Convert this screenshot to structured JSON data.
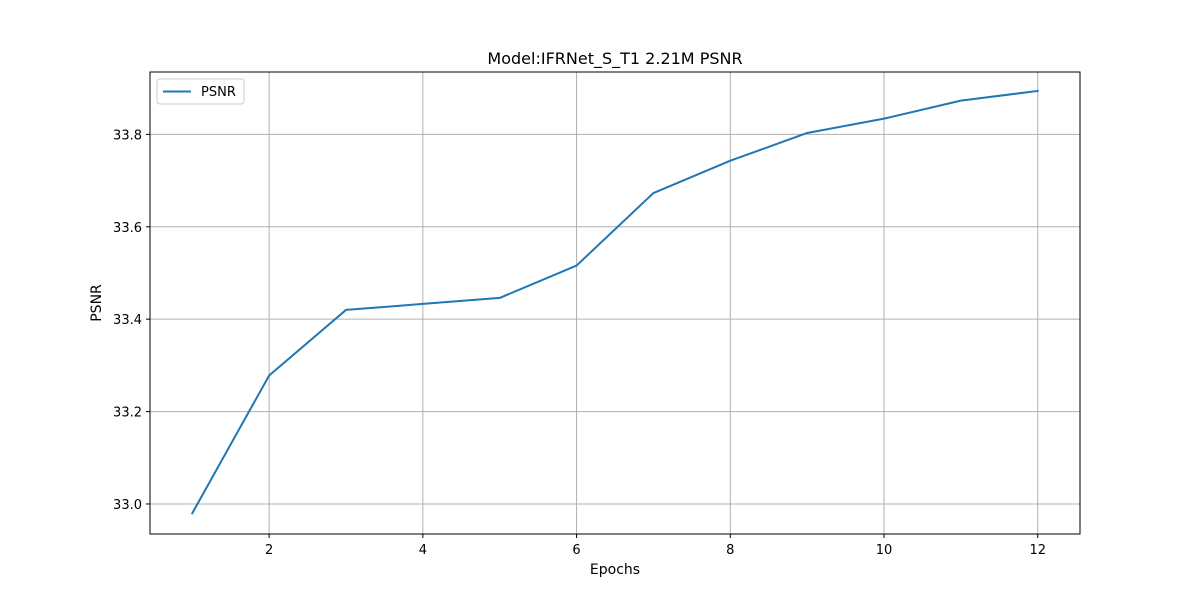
{
  "chart_data": {
    "type": "line",
    "title": "Model:IFRNet_S_T1 2.21M PSNR",
    "xlabel": "Epochs",
    "ylabel": "PSNR",
    "xlim": [
      0.45,
      12.55
    ],
    "ylim": [
      32.935,
      33.935
    ],
    "xticks": [
      2,
      4,
      6,
      8,
      10,
      12
    ],
    "yticks": [
      33.0,
      33.2,
      33.4,
      33.6,
      33.8
    ],
    "xtick_labels": [
      "2",
      "4",
      "6",
      "8",
      "10",
      "12"
    ],
    "ytick_labels": [
      "33.0",
      "33.2",
      "33.4",
      "33.6",
      "33.8"
    ],
    "grid": true,
    "legend": {
      "position": "upper left",
      "entries": [
        "PSNR"
      ]
    },
    "colors": {
      "line": "#1f77b4",
      "grid": "#b0b0b0",
      "legend_border": "#cccccc"
    },
    "series": [
      {
        "name": "PSNR",
        "x": [
          1,
          2,
          3,
          4,
          5,
          6,
          7,
          8,
          9,
          10,
          11,
          12
        ],
        "y": [
          32.98,
          33.278,
          33.42,
          33.433,
          33.446,
          33.516,
          33.673,
          33.743,
          33.803,
          33.834,
          33.873,
          33.894
        ]
      }
    ]
  }
}
